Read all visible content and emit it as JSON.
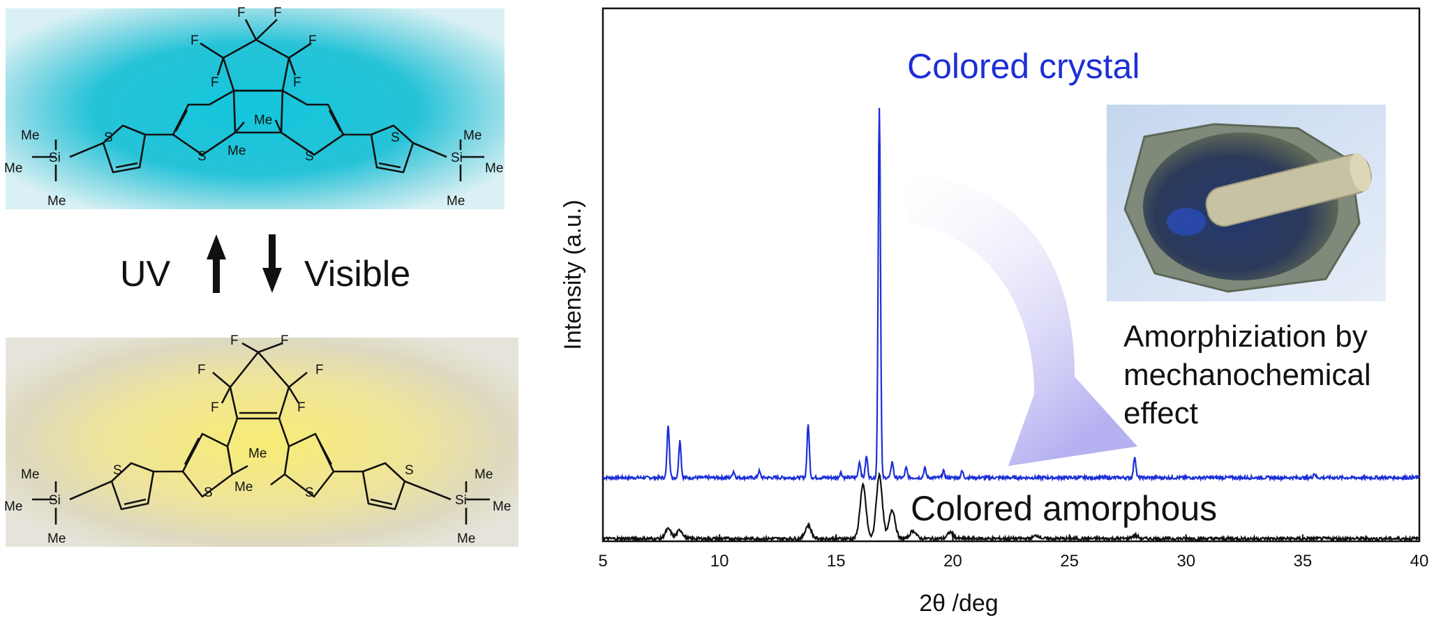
{
  "scheme": {
    "uv_label": "UV",
    "visible_label": "Visible",
    "closed_form": {
      "atoms": {
        "f": "F",
        "s": "S",
        "si": "Si",
        "me": "Me"
      },
      "tint": "#1fc4d8"
    },
    "open_form": {
      "atoms": {
        "f": "F",
        "s": "S",
        "si": "Si",
        "me": "Me"
      },
      "tint": "#f2e35a"
    }
  },
  "photo": {
    "description_icon": "mortar-and-pestle-photo",
    "mortar_color": "#7f8a7a",
    "powder_color": "#2a3d6e"
  },
  "annotation": {
    "lines": [
      "Amorphiziation by",
      "mechanochemical",
      "effect"
    ],
    "arrow_color": "#b8b6f0"
  },
  "chart_data": {
    "type": "line",
    "xlabel": "2θ /deg",
    "ylabel": "Intensity (a.u.)",
    "xlim": [
      5,
      40
    ],
    "xticks": [
      5,
      10,
      15,
      20,
      25,
      30,
      35,
      40
    ],
    "y_ticks_shown": false,
    "grid": false,
    "series": [
      {
        "name": "Colored crystal",
        "color": "#1c2fd6",
        "baseline": 0.12,
        "peaks": [
          {
            "x": 7.8,
            "h": 0.1
          },
          {
            "x": 8.3,
            "h": 0.07
          },
          {
            "x": 10.6,
            "h": 0.012
          },
          {
            "x": 11.7,
            "h": 0.012
          },
          {
            "x": 13.8,
            "h": 0.1
          },
          {
            "x": 15.2,
            "h": 0.01
          },
          {
            "x": 16.0,
            "h": 0.03
          },
          {
            "x": 16.3,
            "h": 0.04
          },
          {
            "x": 16.85,
            "h": 0.7
          },
          {
            "x": 17.4,
            "h": 0.03
          },
          {
            "x": 18.0,
            "h": 0.018
          },
          {
            "x": 18.8,
            "h": 0.018
          },
          {
            "x": 19.6,
            "h": 0.012
          },
          {
            "x": 20.4,
            "h": 0.012
          },
          {
            "x": 27.8,
            "h": 0.04
          },
          {
            "x": 35.5,
            "h": 0.008
          }
        ]
      },
      {
        "name": "Colored amorphous",
        "color": "#111111",
        "baseline": 0.005,
        "peaks": [
          {
            "x": 7.8,
            "h": 0.018
          },
          {
            "x": 8.3,
            "h": 0.016
          },
          {
            "x": 13.8,
            "h": 0.025
          },
          {
            "x": 16.15,
            "h": 0.1
          },
          {
            "x": 16.85,
            "h": 0.12
          },
          {
            "x": 17.4,
            "h": 0.055
          },
          {
            "x": 18.3,
            "h": 0.015
          },
          {
            "x": 19.9,
            "h": 0.012
          },
          {
            "x": 23.6,
            "h": 0.006
          },
          {
            "x": 27.8,
            "h": 0.006
          }
        ]
      }
    ]
  }
}
